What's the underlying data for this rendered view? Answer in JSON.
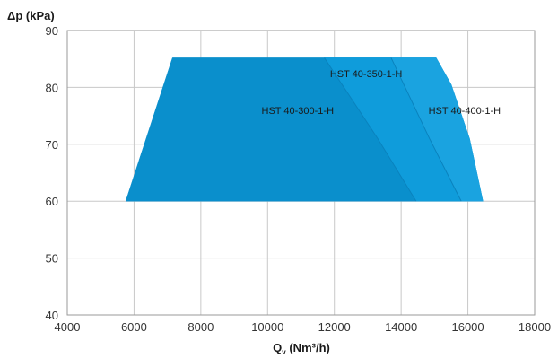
{
  "chart_data": {
    "type": "area",
    "title": "",
    "ylabel": "Δp (kPa)",
    "xlabel_main": "Q",
    "xlabel_sub": "v",
    "xlabel_rest": " (Nm³/h)",
    "xlim": [
      4000,
      18000
    ],
    "ylim": [
      40,
      90
    ],
    "xticks": [
      4000,
      6000,
      8000,
      10000,
      12000,
      14000,
      16000,
      18000
    ],
    "yticks": [
      40,
      50,
      60,
      70,
      80,
      90
    ],
    "grid": true,
    "regions": [
      {
        "name": "HST 40-300-1-H",
        "color": "#0a8fcc",
        "points": [
          [
            5750,
            60
          ],
          [
            7150,
            85.2
          ],
          [
            15050,
            85.2
          ],
          [
            15500,
            80.5
          ],
          [
            16050,
            71
          ],
          [
            16450,
            60
          ]
        ],
        "label_at": [
          10900,
          76
        ]
      },
      {
        "name": "HST 40-350-1-H",
        "color": "#0f9cdb",
        "points": [
          [
            11700,
            85.2
          ],
          [
            13700,
            85.2
          ],
          [
            14850,
            71
          ],
          [
            15800,
            60
          ],
          [
            14450,
            60
          ],
          [
            13300,
            71
          ]
        ],
        "label_at": [
          12950,
          82.4
        ]
      },
      {
        "name": "HST 40-400-1-H",
        "color": "#1aa3e0",
        "points": [
          [
            13700,
            85.2
          ],
          [
            15050,
            85.2
          ],
          [
            15500,
            80.5
          ],
          [
            16050,
            71
          ],
          [
            16450,
            60
          ],
          [
            15800,
            60
          ],
          [
            14850,
            71
          ]
        ],
        "label_at": [
          15900,
          76
        ]
      }
    ],
    "boundary_lines": [
      {
        "color": "#0a82bd",
        "points": [
          [
            11700,
            85.2
          ],
          [
            13300,
            71
          ],
          [
            14450,
            60
          ]
        ]
      },
      {
        "color": "#0a82bd",
        "points": [
          [
            13700,
            85.2
          ],
          [
            14850,
            71
          ],
          [
            15800,
            60
          ]
        ]
      }
    ]
  }
}
